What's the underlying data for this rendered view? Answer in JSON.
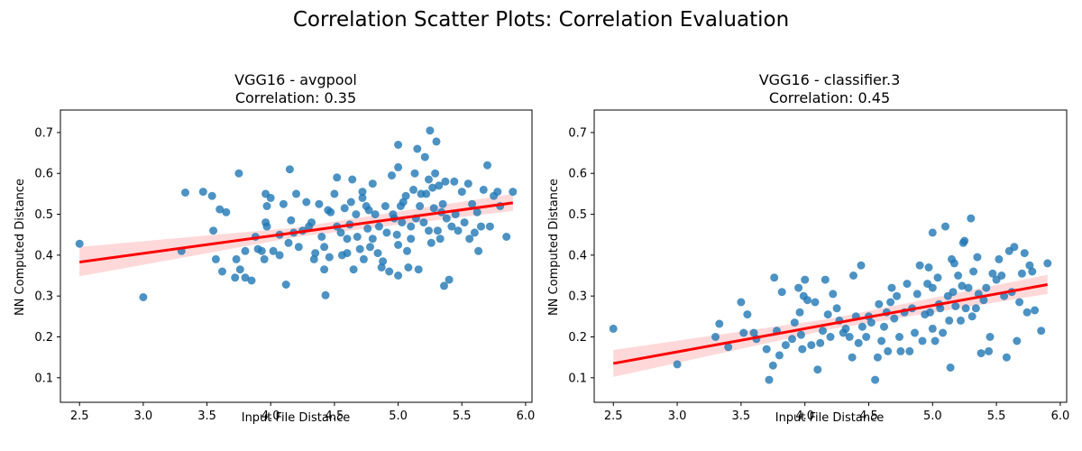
{
  "suptitle": "Correlation Scatter Plots: Correlation Evaluation",
  "chart_data": [
    {
      "type": "scatter",
      "title_line1": "VGG16 - avgpool",
      "title_line2": "Correlation: 0.35",
      "xlabel": "Input File Distance",
      "ylabel": "NN Computed Distance",
      "xlim": [
        2.35,
        6.05
      ],
      "ylim": [
        0.04,
        0.755
      ],
      "xticks": [
        "2.5",
        "3.0",
        "3.5",
        "4.0",
        "4.5",
        "5.0",
        "5.5",
        "6.0"
      ],
      "yticks": [
        "0.1",
        "0.2",
        "0.3",
        "0.4",
        "0.5",
        "0.6",
        "0.7"
      ],
      "grid": false,
      "point_color": "#1f77b4",
      "regression": {
        "color": "#ff0000",
        "x_range": [
          2.5,
          5.9
        ],
        "y_at_xmin": 0.383,
        "y_at_xmax": 0.528,
        "ci_lower_at_xmin": 0.348,
        "ci_upper_at_xmin": 0.42,
        "ci_lower_at_xmax": 0.508,
        "ci_upper_at_xmax": 0.55
      },
      "points": [
        [
          2.5,
          0.428
        ],
        [
          3.0,
          0.297
        ],
        [
          3.3,
          0.41
        ],
        [
          3.33,
          0.553
        ],
        [
          3.47,
          0.555
        ],
        [
          3.54,
          0.545
        ],
        [
          3.55,
          0.46
        ],
        [
          3.57,
          0.39
        ],
        [
          3.6,
          0.512
        ],
        [
          3.62,
          0.36
        ],
        [
          3.65,
          0.505
        ],
        [
          3.72,
          0.345
        ],
        [
          3.73,
          0.39
        ],
        [
          3.75,
          0.6
        ],
        [
          3.76,
          0.365
        ],
        [
          3.8,
          0.345
        ],
        [
          3.8,
          0.41
        ],
        [
          3.85,
          0.338
        ],
        [
          3.88,
          0.445
        ],
        [
          3.9,
          0.415
        ],
        [
          3.93,
          0.41
        ],
        [
          3.95,
          0.39
        ],
        [
          3.96,
          0.55
        ],
        [
          3.96,
          0.48
        ],
        [
          3.97,
          0.47
        ],
        [
          3.97,
          0.52
        ],
        [
          4.0,
          0.54
        ],
        [
          4.02,
          0.41
        ],
        [
          4.07,
          0.4
        ],
        [
          4.07,
          0.45
        ],
        [
          4.1,
          0.525
        ],
        [
          4.12,
          0.328
        ],
        [
          4.14,
          0.43
        ],
        [
          4.15,
          0.61
        ],
        [
          4.16,
          0.485
        ],
        [
          4.18,
          0.455
        ],
        [
          4.2,
          0.55
        ],
        [
          4.22,
          0.42
        ],
        [
          4.25,
          0.46
        ],
        [
          4.28,
          0.53
        ],
        [
          4.3,
          0.47
        ],
        [
          4.32,
          0.48
        ],
        [
          4.34,
          0.39
        ],
        [
          4.35,
          0.405
        ],
        [
          4.38,
          0.525
        ],
        [
          4.4,
          0.445
        ],
        [
          4.42,
          0.365
        ],
        [
          4.42,
          0.42
        ],
        [
          4.43,
          0.302
        ],
        [
          4.45,
          0.51
        ],
        [
          4.46,
          0.395
        ],
        [
          4.47,
          0.505
        ],
        [
          4.5,
          0.55
        ],
        [
          4.52,
          0.59
        ],
        [
          4.52,
          0.47
        ],
        [
          4.55,
          0.455
        ],
        [
          4.56,
          0.4
        ],
        [
          4.58,
          0.515
        ],
        [
          4.6,
          0.405
        ],
        [
          4.6,
          0.44
        ],
        [
          4.62,
          0.475
        ],
        [
          4.63,
          0.53
        ],
        [
          4.64,
          0.585
        ],
        [
          4.65,
          0.365
        ],
        [
          4.67,
          0.5
        ],
        [
          4.68,
          0.445
        ],
        [
          4.7,
          0.415
        ],
        [
          4.72,
          0.555
        ],
        [
          4.72,
          0.54
        ],
        [
          4.73,
          0.39
        ],
        [
          4.75,
          0.52
        ],
        [
          4.76,
          0.465
        ],
        [
          4.77,
          0.51
        ],
        [
          4.78,
          0.42
        ],
        [
          4.8,
          0.575
        ],
        [
          4.8,
          0.44
        ],
        [
          4.82,
          0.5
        ],
        [
          4.84,
          0.405
        ],
        [
          4.85,
          0.47
        ],
        [
          4.87,
          0.37
        ],
        [
          4.88,
          0.385
        ],
        [
          4.9,
          0.52
        ],
        [
          4.91,
          0.455
        ],
        [
          4.93,
          0.36
        ],
        [
          4.95,
          0.595
        ],
        [
          4.96,
          0.5
        ],
        [
          4.97,
          0.49
        ],
        [
          4.99,
          0.45
        ],
        [
          5.0,
          0.67
        ],
        [
          5.0,
          0.615
        ],
        [
          5.0,
          0.425
        ],
        [
          5.0,
          0.35
        ],
        [
          5.02,
          0.52
        ],
        [
          5.03,
          0.48
        ],
        [
          5.04,
          0.53
        ],
        [
          5.06,
          0.545
        ],
        [
          5.07,
          0.41
        ],
        [
          5.08,
          0.37
        ],
        [
          5.1,
          0.44
        ],
        [
          5.1,
          0.47
        ],
        [
          5.12,
          0.56
        ],
        [
          5.13,
          0.6
        ],
        [
          5.14,
          0.49
        ],
        [
          5.15,
          0.66
        ],
        [
          5.16,
          0.365
        ],
        [
          5.17,
          0.52
        ],
        [
          5.18,
          0.55
        ],
        [
          5.2,
          0.48
        ],
        [
          5.21,
          0.64
        ],
        [
          5.22,
          0.55
        ],
        [
          5.24,
          0.585
        ],
        [
          5.24,
          0.46
        ],
        [
          5.25,
          0.705
        ],
        [
          5.26,
          0.43
        ],
        [
          5.27,
          0.565
        ],
        [
          5.28,
          0.515
        ],
        [
          5.29,
          0.6
        ],
        [
          5.3,
          0.678
        ],
        [
          5.31,
          0.46
        ],
        [
          5.32,
          0.57
        ],
        [
          5.33,
          0.44
        ],
        [
          5.34,
          0.505
        ],
        [
          5.35,
          0.525
        ],
        [
          5.36,
          0.325
        ],
        [
          5.37,
          0.58
        ],
        [
          5.38,
          0.49
        ],
        [
          5.4,
          0.34
        ],
        [
          5.42,
          0.47
        ],
        [
          5.44,
          0.58
        ],
        [
          5.45,
          0.5
        ],
        [
          5.47,
          0.46
        ],
        [
          5.5,
          0.555
        ],
        [
          5.52,
          0.48
        ],
        [
          5.55,
          0.575
        ],
        [
          5.56,
          0.44
        ],
        [
          5.58,
          0.525
        ],
        [
          5.6,
          0.455
        ],
        [
          5.62,
          0.505
        ],
        [
          5.63,
          0.41
        ],
        [
          5.65,
          0.47
        ],
        [
          5.67,
          0.56
        ],
        [
          5.7,
          0.62
        ],
        [
          5.72,
          0.47
        ],
        [
          5.75,
          0.545
        ],
        [
          5.78,
          0.555
        ],
        [
          5.8,
          0.52
        ],
        [
          5.85,
          0.445
        ],
        [
          5.9,
          0.555
        ]
      ]
    },
    {
      "type": "scatter",
      "title_line1": "VGG16 - classifier.3",
      "title_line2": "Correlation: 0.45",
      "xlabel": "Input File Distance",
      "ylabel": "NN Computed Distance",
      "xlim": [
        2.35,
        6.05
      ],
      "ylim": [
        0.04,
        0.755
      ],
      "xticks": [
        "2.5",
        "3.0",
        "3.5",
        "4.0",
        "4.5",
        "5.0",
        "5.5",
        "6.0"
      ],
      "yticks": [
        "0.1",
        "0.2",
        "0.3",
        "0.4",
        "0.5",
        "0.6",
        "0.7"
      ],
      "grid": false,
      "point_color": "#1f77b4",
      "regression": {
        "color": "#ff0000",
        "x_range": [
          2.5,
          5.9
        ],
        "y_at_xmin": 0.135,
        "y_at_xmax": 0.328,
        "ci_lower_at_xmin": 0.102,
        "ci_upper_at_xmin": 0.168,
        "ci_lower_at_xmax": 0.305,
        "ci_upper_at_xmax": 0.352
      },
      "points": [
        [
          2.5,
          0.22
        ],
        [
          3.0,
          0.133
        ],
        [
          3.3,
          0.2
        ],
        [
          3.33,
          0.232
        ],
        [
          3.4,
          0.175
        ],
        [
          3.5,
          0.285
        ],
        [
          3.52,
          0.21
        ],
        [
          3.55,
          0.255
        ],
        [
          3.6,
          0.21
        ],
        [
          3.62,
          0.195
        ],
        [
          3.7,
          0.17
        ],
        [
          3.72,
          0.095
        ],
        [
          3.75,
          0.13
        ],
        [
          3.76,
          0.345
        ],
        [
          3.78,
          0.215
        ],
        [
          3.8,
          0.155
        ],
        [
          3.82,
          0.31
        ],
        [
          3.85,
          0.18
        ],
        [
          3.9,
          0.195
        ],
        [
          3.92,
          0.235
        ],
        [
          3.95,
          0.32
        ],
        [
          3.96,
          0.26
        ],
        [
          3.97,
          0.205
        ],
        [
          3.98,
          0.17
        ],
        [
          3.99,
          0.3
        ],
        [
          4.0,
          0.34
        ],
        [
          4.02,
          0.29
        ],
        [
          4.05,
          0.18
        ],
        [
          4.08,
          0.285
        ],
        [
          4.1,
          0.12
        ],
        [
          4.12,
          0.185
        ],
        [
          4.14,
          0.215
        ],
        [
          4.16,
          0.34
        ],
        [
          4.18,
          0.255
        ],
        [
          4.2,
          0.2
        ],
        [
          4.22,
          0.305
        ],
        [
          4.25,
          0.27
        ],
        [
          4.27,
          0.24
        ],
        [
          4.3,
          0.21
        ],
        [
          4.32,
          0.22
        ],
        [
          4.35,
          0.2
        ],
        [
          4.37,
          0.15
        ],
        [
          4.38,
          0.35
        ],
        [
          4.4,
          0.25
        ],
        [
          4.42,
          0.185
        ],
        [
          4.44,
          0.375
        ],
        [
          4.45,
          0.225
        ],
        [
          4.48,
          0.2
        ],
        [
          4.5,
          0.25
        ],
        [
          4.52,
          0.235
        ],
        [
          4.55,
          0.095
        ],
        [
          4.57,
          0.15
        ],
        [
          4.58,
          0.28
        ],
        [
          4.6,
          0.19
        ],
        [
          4.62,
          0.225
        ],
        [
          4.64,
          0.26
        ],
        [
          4.65,
          0.165
        ],
        [
          4.67,
          0.285
        ],
        [
          4.68,
          0.32
        ],
        [
          4.7,
          0.245
        ],
        [
          4.72,
          0.3
        ],
        [
          4.74,
          0.2
        ],
        [
          4.75,
          0.165
        ],
        [
          4.78,
          0.26
        ],
        [
          4.8,
          0.33
        ],
        [
          4.82,
          0.165
        ],
        [
          4.84,
          0.27
        ],
        [
          4.86,
          0.21
        ],
        [
          4.88,
          0.305
        ],
        [
          4.9,
          0.375
        ],
        [
          4.92,
          0.19
        ],
        [
          4.94,
          0.255
        ],
        [
          4.96,
          0.33
        ],
        [
          4.97,
          0.37
        ],
        [
          4.98,
          0.26
        ],
        [
          5.0,
          0.455
        ],
        [
          5.0,
          0.32
        ],
        [
          5.0,
          0.22
        ],
        [
          5.02,
          0.19
        ],
        [
          5.04,
          0.345
        ],
        [
          5.05,
          0.28
        ],
        [
          5.06,
          0.27
        ],
        [
          5.08,
          0.21
        ],
        [
          5.1,
          0.47
        ],
        [
          5.12,
          0.3
        ],
        [
          5.13,
          0.24
        ],
        [
          5.14,
          0.125
        ],
        [
          5.15,
          0.39
        ],
        [
          5.16,
          0.31
        ],
        [
          5.17,
          0.38
        ],
        [
          5.18,
          0.275
        ],
        [
          5.2,
          0.35
        ],
        [
          5.22,
          0.24
        ],
        [
          5.23,
          0.325
        ],
        [
          5.24,
          0.43
        ],
        [
          5.25,
          0.435
        ],
        [
          5.26,
          0.27
        ],
        [
          5.28,
          0.32
        ],
        [
          5.3,
          0.49
        ],
        [
          5.31,
          0.25
        ],
        [
          5.32,
          0.36
        ],
        [
          5.34,
          0.27
        ],
        [
          5.35,
          0.395
        ],
        [
          5.36,
          0.305
        ],
        [
          5.38,
          0.16
        ],
        [
          5.4,
          0.29
        ],
        [
          5.42,
          0.32
        ],
        [
          5.44,
          0.165
        ],
        [
          5.45,
          0.2
        ],
        [
          5.47,
          0.355
        ],
        [
          5.5,
          0.34
        ],
        [
          5.52,
          0.39
        ],
        [
          5.54,
          0.35
        ],
        [
          5.56,
          0.3
        ],
        [
          5.58,
          0.15
        ],
        [
          5.6,
          0.41
        ],
        [
          5.62,
          0.31
        ],
        [
          5.64,
          0.42
        ],
        [
          5.66,
          0.19
        ],
        [
          5.68,
          0.285
        ],
        [
          5.7,
          0.355
        ],
        [
          5.72,
          0.405
        ],
        [
          5.74,
          0.26
        ],
        [
          5.76,
          0.375
        ],
        [
          5.78,
          0.36
        ],
        [
          5.8,
          0.265
        ],
        [
          5.85,
          0.215
        ],
        [
          5.9,
          0.38
        ]
      ]
    }
  ]
}
